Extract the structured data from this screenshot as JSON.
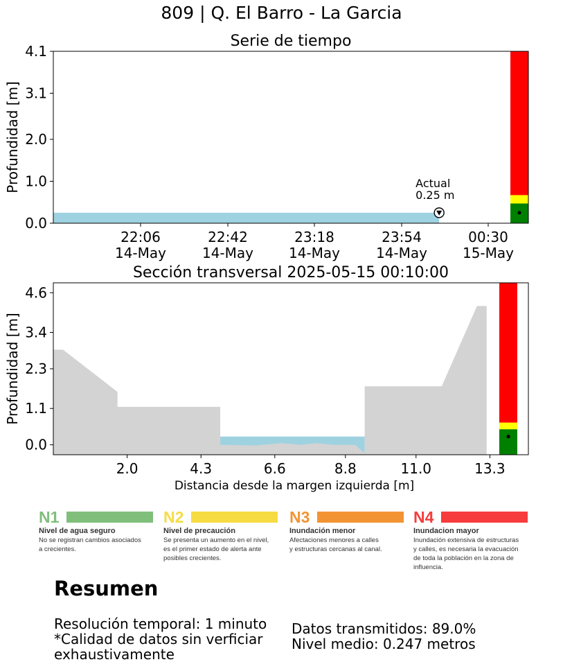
{
  "figure_title": "809 | Q. El Barro - La Garcia",
  "colors": {
    "water": "#9fd2e1",
    "terrain": "#d3d3d3",
    "alert_red": "#ff0000",
    "alert_yellow": "#ffff00",
    "alert_green": "#008000"
  },
  "chart_data": [
    {
      "type": "area",
      "title": "Serie de tiempo",
      "ylabel": "Profundidad [m]",
      "xlabel": "",
      "y_ticks": [
        "0.0",
        "1.0",
        "2.0",
        "3.1",
        "4.1"
      ],
      "ylim": [
        0,
        4.1
      ],
      "x_ticks": [
        {
          "time": "22:06",
          "date": "14-May"
        },
        {
          "time": "22:42",
          "date": "14-May"
        },
        {
          "time": "23:18",
          "date": "14-May"
        },
        {
          "time": "23:54",
          "date": "14-May"
        },
        {
          "time": "00:30",
          "date": "15-May"
        }
      ],
      "xlim": [
        "2025-05-14 21:30",
        "2025-05-15 00:47"
      ],
      "series": [
        {
          "points": [
            [
              "2025-05-14 21:30",
              0.25
            ],
            [
              "2025-05-15 00:10",
              0.25
            ]
          ]
        }
      ],
      "current_marker": {
        "time": "2025-05-15 00:10",
        "value": 0.25
      },
      "annotation": {
        "line1": "Actual",
        "line2": "0.25 m"
      },
      "alert_bar": {
        "green_top": 0.47,
        "yellow_top": 0.67,
        "red_top": 4.1,
        "current": 0.25
      },
      "grid": false
    },
    {
      "type": "area",
      "title": "Sección transversal 2025-05-15 00:10:00",
      "xlabel": "Distancia desde la margen izquierda [m]",
      "ylabel": "Profundidad [m]",
      "x_ticks": [
        "2.0",
        "4.3",
        "6.6",
        "8.8",
        "11.0",
        "13.3"
      ],
      "y_ticks": [
        "0.0",
        "1.1",
        "2.3",
        "3.4",
        "4.6"
      ],
      "xlim": [
        -0.3,
        14.5
      ],
      "ylim": [
        -0.3,
        4.9
      ],
      "terrain": [
        [
          -0.3,
          2.88
        ],
        [
          0.0,
          2.88
        ],
        [
          1.7,
          1.6
        ],
        [
          1.7,
          1.15
        ],
        [
          4.9,
          1.15
        ],
        [
          4.9,
          0.0
        ],
        [
          6.0,
          -0.02
        ],
        [
          6.8,
          0.05
        ],
        [
          7.4,
          0.0
        ],
        [
          7.9,
          0.05
        ],
        [
          8.4,
          0.0
        ],
        [
          9.1,
          0.0
        ],
        [
          9.4,
          -0.25
        ],
        [
          9.4,
          1.77
        ],
        [
          11.8,
          1.77
        ],
        [
          12.9,
          4.2
        ],
        [
          13.2,
          4.2
        ],
        [
          13.2,
          -0.3
        ]
      ],
      "water_level": 0.25,
      "water_x": [
        4.9,
        9.4
      ],
      "alert_bar": {
        "green_top": 0.47,
        "yellow_top": 0.67,
        "red_top": 4.9,
        "current": 0.25
      },
      "grid": false
    }
  ],
  "legend_levels": [
    {
      "code": "N1",
      "color": "#7fbf7b",
      "name": "Nivel de agua seguro",
      "desc": [
        "No se registran cambios asociados",
        "a crecientes."
      ]
    },
    {
      "code": "N2",
      "color": "#f6dc42",
      "name": "Nivel de precaución",
      "desc": [
        "Se presenta un aumento en el nivel,",
        "es el primer estado de alerta ante",
        "posibles crecientes."
      ]
    },
    {
      "code": "N3",
      "color": "#f39434",
      "name": "Inundación menor",
      "desc": [
        "Afectaciones menores a calles",
        "y estructuras cercanas al canal."
      ]
    },
    {
      "code": "N4",
      "color": "#f63c3c",
      "name": "Inundacion mayor",
      "desc": [
        "Inundación extensiva de estructuras",
        "y calles, es necesaria la evacuación",
        "de toda la población en la zona de",
        "influencia."
      ]
    }
  ],
  "summary": {
    "title": "Resumen",
    "left_lines": [
      "Resolución temporal: 1 minuto",
      "*Calidad de datos sin verficiar",
      "exhaustivamente"
    ],
    "right_lines": [
      "Datos transmitidos: 89.0%",
      "Nivel medio: 0.247 metros"
    ]
  }
}
